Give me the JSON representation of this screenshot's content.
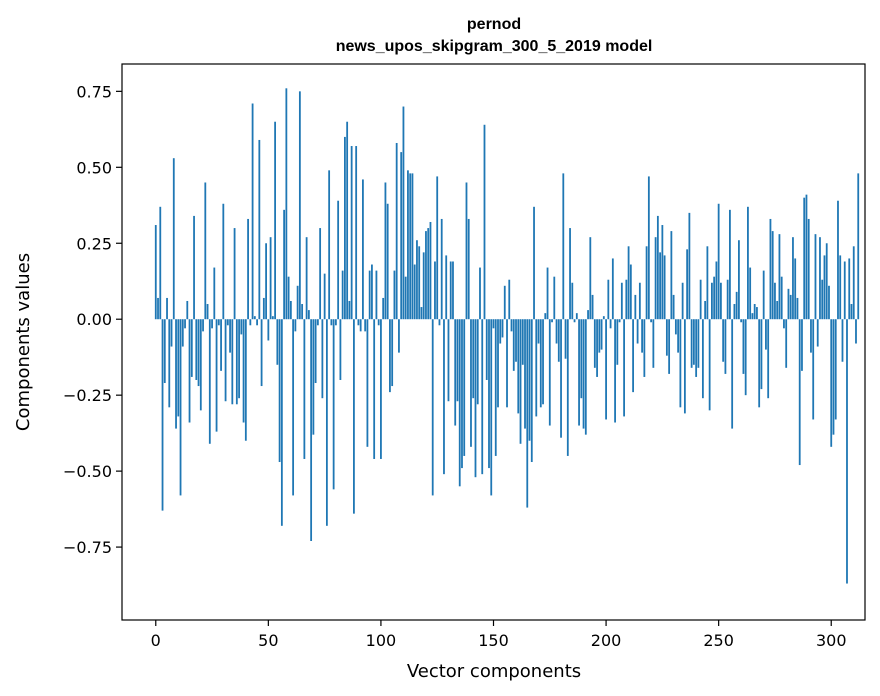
{
  "chart_data": {
    "type": "bar",
    "title": "pernod",
    "subtitle": "news_upos_skipgram_300_5_2019 model",
    "xlabel": "Vector components",
    "ylabel": "Components values",
    "xlim": [
      -15,
      315
    ],
    "ylim": [
      -0.99,
      0.84
    ],
    "xticks": [
      0,
      50,
      100,
      150,
      200,
      250,
      300
    ],
    "xtick_labels": [
      "0",
      "50",
      "100",
      "150",
      "200",
      "250",
      "300"
    ],
    "yticks": [
      -0.75,
      -0.5,
      -0.25,
      0.0,
      0.25,
      0.5,
      0.75
    ],
    "ytick_labels": [
      "−0.75",
      "−0.50",
      "−0.25",
      "0.00",
      "0.25",
      "0.50",
      "0.75"
    ],
    "bar_color": "#1f77b4",
    "grid": false,
    "values": [
      0.31,
      0.07,
      0.37,
      -0.63,
      -0.21,
      0.07,
      -0.29,
      -0.09,
      0.53,
      -0.36,
      -0.32,
      -0.58,
      -0.09,
      -0.03,
      0.06,
      -0.34,
      -0.19,
      0.34,
      -0.2,
      -0.22,
      -0.3,
      -0.04,
      0.45,
      0.05,
      -0.41,
      -0.03,
      0.17,
      -0.37,
      -0.02,
      -0.17,
      0.38,
      -0.27,
      -0.02,
      -0.11,
      -0.28,
      0.3,
      -0.28,
      -0.26,
      -0.05,
      -0.34,
      -0.4,
      0.33,
      -0.02,
      0.71,
      0.01,
      -0.02,
      0.59,
      -0.22,
      0.07,
      0.25,
      -0.07,
      0.27,
      0.01,
      0.65,
      -0.15,
      -0.47,
      -0.68,
      0.36,
      0.76,
      0.14,
      0.06,
      -0.58,
      -0.04,
      0.11,
      0.75,
      0.05,
      -0.46,
      0.27,
      0.03,
      -0.73,
      -0.38,
      -0.21,
      -0.02,
      0.3,
      -0.26,
      0.15,
      -0.68,
      0.49,
      -0.02,
      -0.56,
      -0.02,
      0.39,
      -0.2,
      0.16,
      0.6,
      0.65,
      0.06,
      0.57,
      -0.64,
      0.57,
      -0.02,
      -0.04,
      0.46,
      -0.04,
      -0.42,
      0.16,
      0.18,
      -0.46,
      0.16,
      -0.02,
      -0.46,
      0.07,
      0.45,
      0.38,
      -0.24,
      -0.22,
      0.16,
      0.58,
      -0.11,
      0.55,
      0.7,
      0.14,
      0.49,
      0.48,
      0.48,
      0.18,
      0.26,
      0.24,
      0.04,
      0.22,
      0.29,
      0.3,
      0.32,
      -0.58,
      0.19,
      0.47,
      -0.02,
      0.33,
      -0.51,
      0.21,
      -0.27,
      0.19,
      0.19,
      -0.35,
      -0.27,
      -0.55,
      -0.49,
      -0.45,
      0.45,
      0.33,
      -0.42,
      -0.26,
      -0.52,
      -0.28,
      0.17,
      -0.51,
      0.64,
      -0.2,
      -0.49,
      -0.58,
      -0.03,
      -0.45,
      -0.29,
      -0.08,
      -0.06,
      0.11,
      -0.29,
      0.13,
      -0.04,
      -0.17,
      -0.14,
      -0.31,
      -0.41,
      -0.15,
      -0.36,
      -0.62,
      -0.4,
      -0.47,
      0.37,
      -0.32,
      -0.08,
      -0.29,
      -0.28,
      0.02,
      0.17,
      -0.35,
      -0.01,
      0.14,
      -0.08,
      -0.14,
      -0.39,
      0.48,
      -0.13,
      -0.45,
      0.3,
      0.12,
      -0.01,
      0.02,
      -0.35,
      -0.26,
      -0.36,
      -0.38,
      0.03,
      0.27,
      0.08,
      -0.16,
      -0.19,
      -0.11,
      -0.1,
      0.01,
      -0.33,
      0.13,
      -0.03,
      0.2,
      -0.34,
      -0.15,
      -0.01,
      0.12,
      -0.32,
      0.13,
      0.24,
      0.18,
      -0.24,
      0.08,
      -0.08,
      0.12,
      -0.11,
      -0.19,
      0.24,
      0.47,
      -0.01,
      -0.16,
      0.27,
      0.34,
      0.22,
      0.31,
      0.21,
      -0.12,
      -0.18,
      0.29,
      0.08,
      -0.05,
      -0.11,
      -0.29,
      0.12,
      -0.31,
      0.23,
      0.35,
      -0.16,
      -0.15,
      -0.19,
      -0.16,
      0.13,
      -0.26,
      0.06,
      0.24,
      -0.3,
      0.12,
      0.14,
      0.19,
      0.38,
      0.12,
      -0.14,
      -0.18,
      0.13,
      0.36,
      -0.36,
      0.05,
      0.09,
      0.26,
      -0.01,
      -0.18,
      -0.25,
      0.37,
      0.17,
      0.02,
      0.05,
      0.04,
      -0.29,
      -0.23,
      0.16,
      -0.1,
      -0.26,
      0.33,
      0.29,
      0.12,
      0.06,
      0.28,
      0.14,
      -0.03,
      -0.16,
      0.1,
      0.08,
      0.27,
      0.2,
      0.07,
      -0.48,
      -0.17,
      0.4,
      0.41,
      0.33,
      -0.11,
      -0.33,
      0.28,
      -0.09,
      0.27,
      0.13,
      0.21,
      0.25,
      0.11,
      -0.42,
      -0.38,
      -0.33,
      0.39,
      0.21,
      -0.14,
      0.19,
      -0.87,
      0.2,
      0.05,
      0.24,
      -0.08,
      0.48
    ]
  }
}
